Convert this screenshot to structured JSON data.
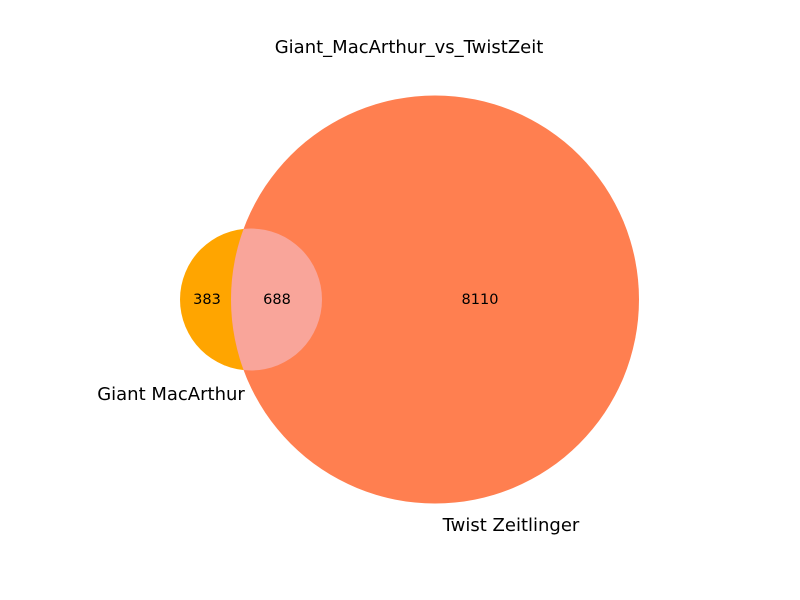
{
  "title": "Giant_MacArthur_vs_TwistZeit",
  "sets": [
    {
      "name": "Giant MacArthur",
      "color": "#ffa500"
    },
    {
      "name": "Twist Zeitlinger",
      "color": "#ff7f50"
    }
  ],
  "counts": {
    "only_a": "383",
    "intersection": "688",
    "only_b": "8110"
  },
  "intersection_color": "#f9a59a"
}
